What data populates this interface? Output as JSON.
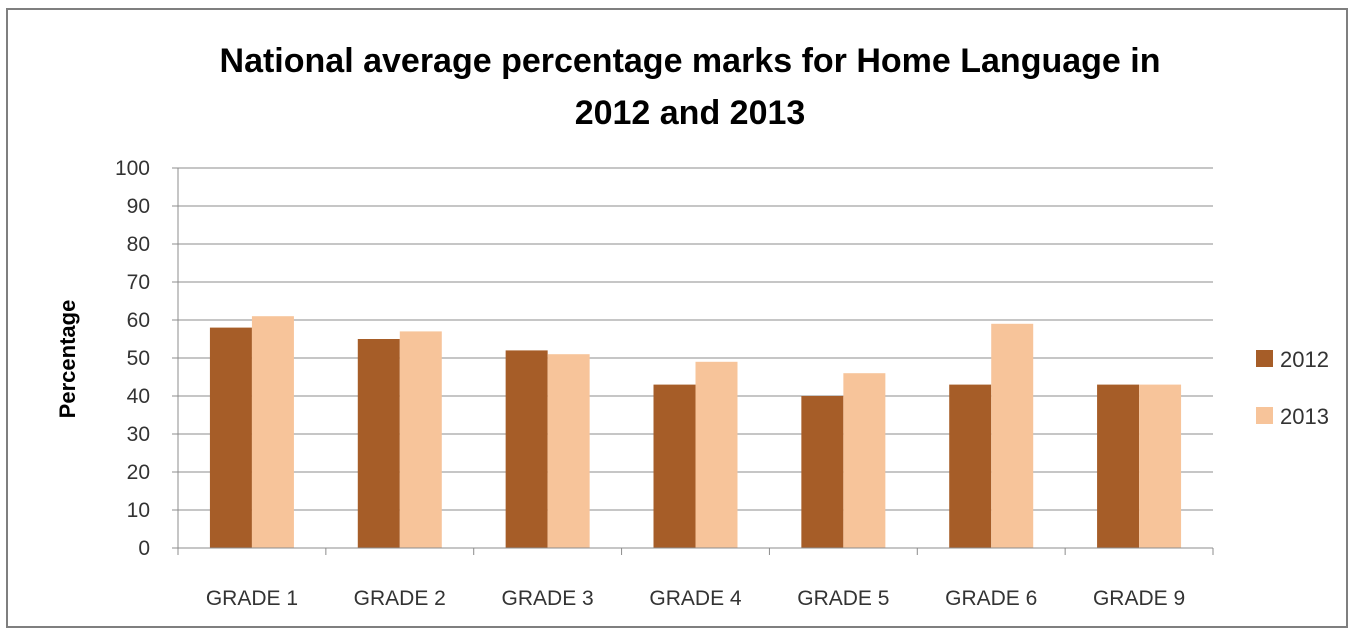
{
  "chart_data": {
    "type": "bar",
    "title": "National average percentage marks for Home Language in 2012 and 2013",
    "title_lines": [
      "National average percentage marks for Home Language in",
      "2012 and 2013"
    ],
    "xlabel": "",
    "ylabel": "Percentage",
    "ylim": [
      0,
      100
    ],
    "yticks": [
      0,
      10,
      20,
      30,
      40,
      50,
      60,
      70,
      80,
      90,
      100
    ],
    "grid": true,
    "legend_position": "right",
    "categories": [
      "GRADE 1",
      "GRADE 2",
      "GRADE 3",
      "GRADE 4",
      "GRADE 5",
      "GRADE 6",
      "GRADE 9"
    ],
    "series": [
      {
        "name": "2012",
        "color": "#a65d28",
        "values": [
          58,
          55,
          52,
          43,
          40,
          43,
          43
        ]
      },
      {
        "name": "2013",
        "color": "#f7c49a",
        "values": [
          61,
          57,
          51,
          49,
          46,
          59,
          43
        ]
      }
    ]
  }
}
